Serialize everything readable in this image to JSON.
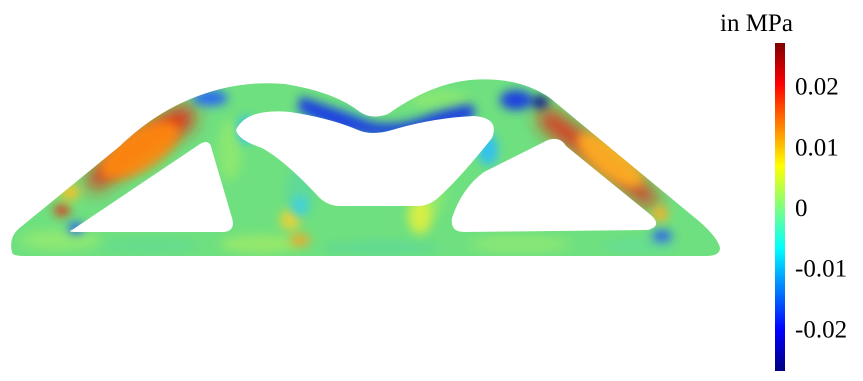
{
  "colorbar": {
    "unit_label": "in MPa",
    "tick_labels": [
      "0.02",
      "0.01",
      "0",
      "-0.01",
      "-0.02"
    ],
    "ticks": [
      0.02,
      0.01,
      0,
      -0.01,
      -0.02
    ],
    "range": [
      -0.027,
      0.027
    ],
    "colormap": "jet",
    "colors": [
      "#00007f",
      "#0000ff",
      "#00ffff",
      "#7fff7f",
      "#ffff00",
      "#ff0000",
      "#7f0000"
    ]
  },
  "figure": {
    "base_color": "#6fe07f",
    "hot_color": "#e8240a",
    "cold_color": "#1a3fe0"
  }
}
